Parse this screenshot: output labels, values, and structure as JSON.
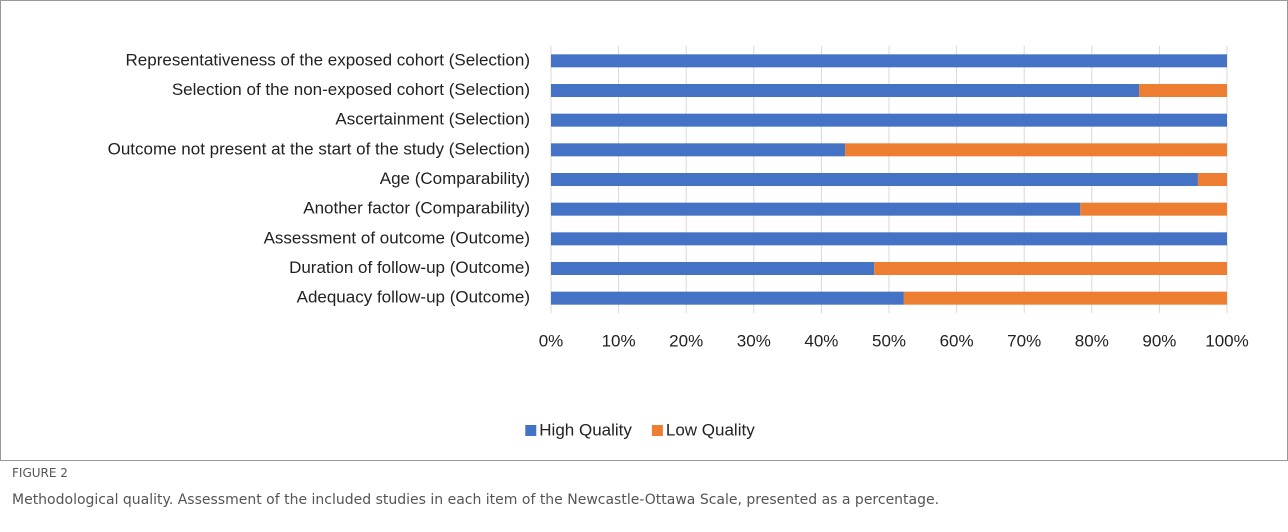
{
  "chart_data": {
    "type": "stacked_barh",
    "categories": [
      "Representativeness of the exposed cohort (Selection)",
      "Selection of the non-exposed cohort (Selection)",
      "Ascertainment (Selection)",
      "Outcome not present at the start of the study (Selection)",
      "Age (Comparability)",
      "Another factor (Comparability)",
      "Assessment of outcome (Outcome)",
      "Duration of follow-up (Outcome)",
      "Adequacy follow-up (Outcome)"
    ],
    "series": [
      {
        "name": "High Quality",
        "color": "#4472c4",
        "values": [
          100,
          87.0,
          100,
          43.5,
          95.7,
          78.3,
          100,
          47.8,
          52.2
        ]
      },
      {
        "name": "Low Quality",
        "color": "#ed7d31",
        "values": [
          0,
          13.0,
          0,
          56.5,
          4.3,
          21.7,
          0,
          52.2,
          47.8
        ]
      }
    ],
    "xlim": [
      0,
      100
    ],
    "xticks": [
      {
        "value": 0,
        "label": "0%"
      },
      {
        "value": 10,
        "label": "10%"
      },
      {
        "value": 20,
        "label": "20%"
      },
      {
        "value": 30,
        "label": "30%"
      },
      {
        "value": 40,
        "label": "40%"
      },
      {
        "value": 50,
        "label": "50%"
      },
      {
        "value": 60,
        "label": "60%"
      },
      {
        "value": 70,
        "label": "70%"
      },
      {
        "value": 80,
        "label": "80%"
      },
      {
        "value": 90,
        "label": "90%"
      },
      {
        "value": 100,
        "label": "100%"
      }
    ],
    "grid": true,
    "legend": "bottom"
  },
  "caption": {
    "label": "FIGURE 2",
    "text": "Methodological quality. Assessment of the included studies in each item of the Newcastle-Ottawa Scale, presented as a percentage."
  }
}
